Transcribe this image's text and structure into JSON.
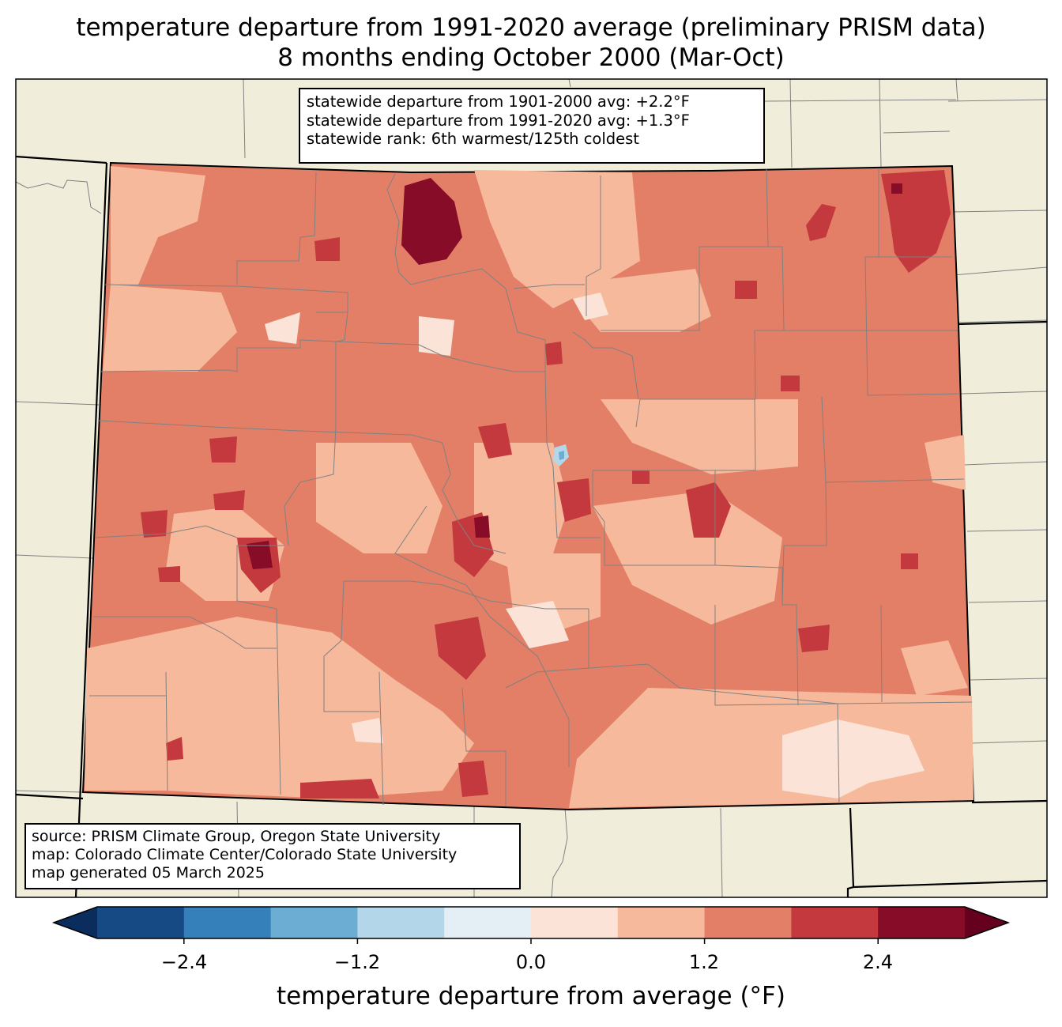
{
  "title": {
    "line1": "temperature departure from 1991-2020 average (preliminary PRISM data)",
    "line2": "8 months ending October 2000 (Mar-Oct)"
  },
  "stats_box": {
    "line1": "statewide departure from 1901-2000 avg: +2.2°F",
    "line2": "statewide departure from 1991-2020 avg: +1.3°F",
    "line3": "statewide rank: 6th warmest/125th coldest"
  },
  "source_box": {
    "line1": "source: PRISM Climate Group, Oregon State University",
    "line2": "map: Colorado Climate Center/Colorado State University",
    "line3": "map generated 05 March 2025"
  },
  "colorbar": {
    "label": "temperature departure from average (°F)",
    "ticks": [
      "−2.4",
      "−1.2",
      "0.0",
      "1.2",
      "2.4"
    ],
    "bins": [
      {
        "from": -3.0,
        "to": -2.4,
        "color": "#154a84"
      },
      {
        "from": -2.4,
        "to": -1.8,
        "color": "#3580ba"
      },
      {
        "from": -1.8,
        "to": -1.2,
        "color": "#6caed3"
      },
      {
        "from": -1.2,
        "to": -0.6,
        "color": "#b3d6e8"
      },
      {
        "from": -0.6,
        "to": 0.0,
        "color": "#e3eef5"
      },
      {
        "from": 0.0,
        "to": 0.6,
        "color": "#fbe3d7"
      },
      {
        "from": 0.6,
        "to": 1.2,
        "color": "#f6b99c"
      },
      {
        "from": 1.2,
        "to": 1.8,
        "color": "#e37f67"
      },
      {
        "from": 1.8,
        "to": 2.4,
        "color": "#c3393e"
      },
      {
        "from": 2.4,
        "to": 3.0,
        "color": "#860c27"
      }
    ],
    "under_color": "#0b2d5e",
    "over_color": "#66001f"
  },
  "map_colors": {
    "land": "#f0eedb",
    "frame": "#000000",
    "county_lines": "#808080"
  }
}
